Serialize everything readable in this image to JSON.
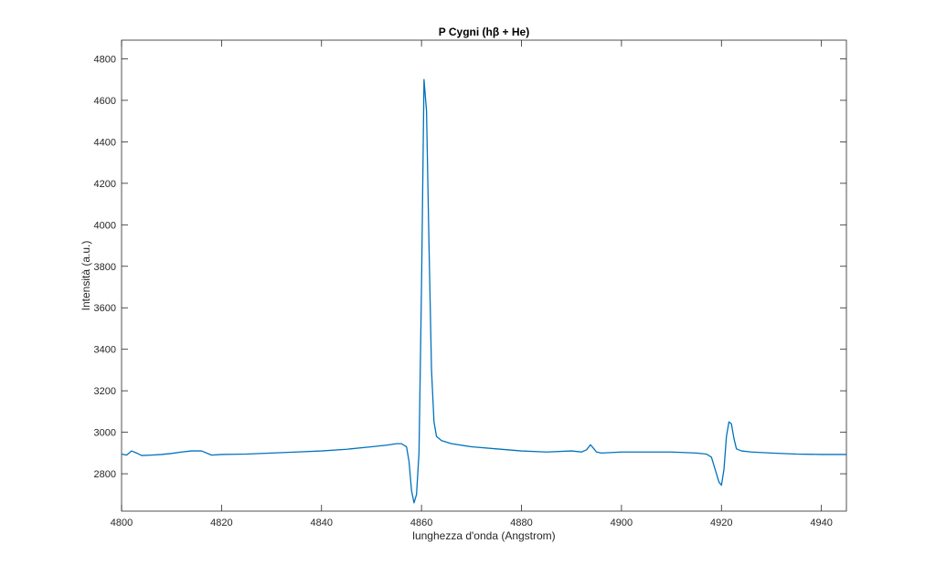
{
  "chart_data": {
    "type": "line",
    "title": "P Cygni (hβ + He)",
    "xlabel": "lunghezza d'onda (Angstrom)",
    "ylabel": "Intensità (a.u.)",
    "xlim": [
      4800,
      4945
    ],
    "ylim": [
      2620,
      4890
    ],
    "xticks": [
      4800,
      4820,
      4840,
      4860,
      4880,
      4900,
      4920,
      4940
    ],
    "yticks": [
      2800,
      3000,
      3200,
      3400,
      3600,
      3800,
      4000,
      4200,
      4400,
      4600,
      4800
    ],
    "grid": false,
    "line_color": "#0072BD",
    "series": [
      {
        "x": [
          4800,
          4801,
          4802,
          4803,
          4804,
          4806,
          4808,
          4810,
          4812,
          4814,
          4816,
          4818,
          4820,
          4825,
          4830,
          4835,
          4840,
          4845,
          4850,
          4853,
          4855,
          4856,
          4857,
          4857.5,
          4858,
          4858.5,
          4859,
          4859.5,
          4860,
          4860.5,
          4861,
          4861.5,
          4862,
          4862.5,
          4863,
          4864,
          4866,
          4870,
          4875,
          4880,
          4885,
          4890,
          4892,
          4893,
          4893.8,
          4894.5,
          4895,
          4896,
          4900,
          4905,
          4910,
          4915,
          4917,
          4918,
          4919,
          4919.5,
          4920,
          4920.5,
          4921,
          4921.5,
          4922,
          4922.5,
          4923,
          4924,
          4926,
          4930,
          4935,
          4940,
          4945
        ],
        "y": [
          2895,
          2890,
          2910,
          2900,
          2888,
          2890,
          2893,
          2898,
          2905,
          2910,
          2910,
          2890,
          2893,
          2895,
          2900,
          2905,
          2910,
          2918,
          2930,
          2938,
          2945,
          2945,
          2930,
          2860,
          2720,
          2660,
          2700,
          2900,
          3700,
          4700,
          4550,
          3900,
          3300,
          3050,
          2980,
          2960,
          2945,
          2930,
          2920,
          2910,
          2905,
          2910,
          2905,
          2915,
          2940,
          2920,
          2905,
          2900,
          2905,
          2905,
          2905,
          2900,
          2895,
          2880,
          2800,
          2760,
          2745,
          2820,
          2980,
          3050,
          3040,
          2970,
          2920,
          2910,
          2905,
          2900,
          2895,
          2893,
          2893
        ]
      }
    ]
  }
}
